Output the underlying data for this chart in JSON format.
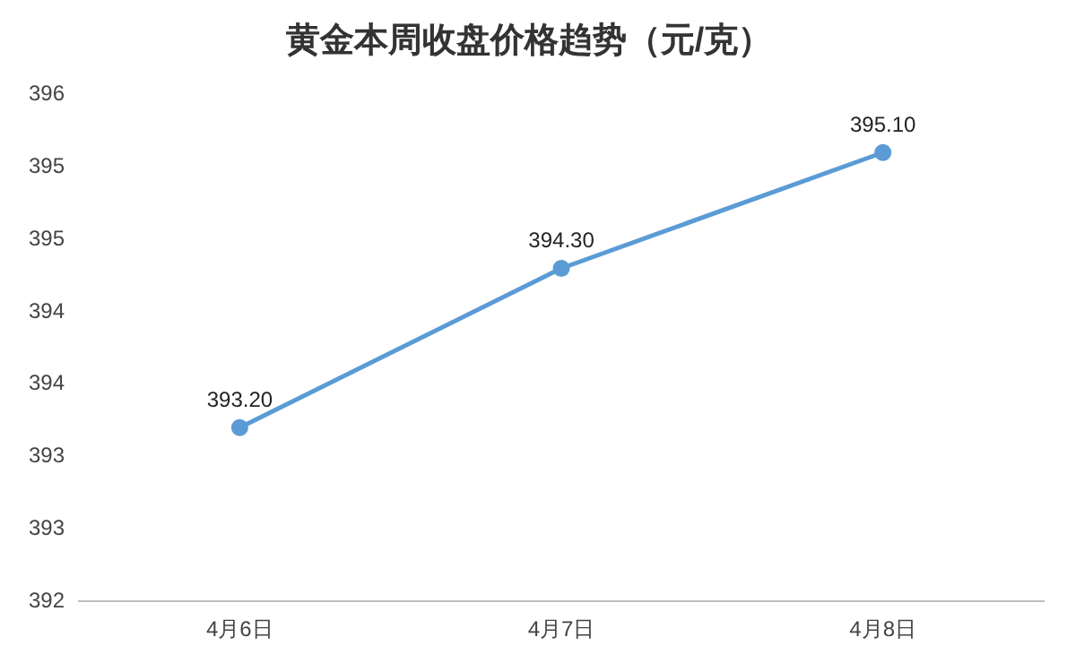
{
  "chart_data": {
    "type": "line",
    "title": "黄金本周收盘价格趋势（元/克）",
    "categories": [
      "4月6日",
      "4月7日",
      "4月8日"
    ],
    "series": [
      {
        "color": "#5b9bd5",
        "values": [
          393.2,
          394.3,
          395.1
        ],
        "value_labels": [
          "393.20",
          "394.30",
          "395.10"
        ]
      }
    ],
    "ylim": [
      392,
      395.5
    ],
    "yticks": [
      392,
      {
        "value": 392.5,
        "label": "393"
      },
      393,
      {
        "value": 393.5,
        "label": "394"
      },
      394,
      {
        "value": 394.5,
        "label": "395"
      },
      395,
      {
        "value": 395.5,
        "label": "396"
      }
    ],
    "grid": false,
    "legend": false,
    "marker": "circle",
    "line_style": "solid"
  }
}
